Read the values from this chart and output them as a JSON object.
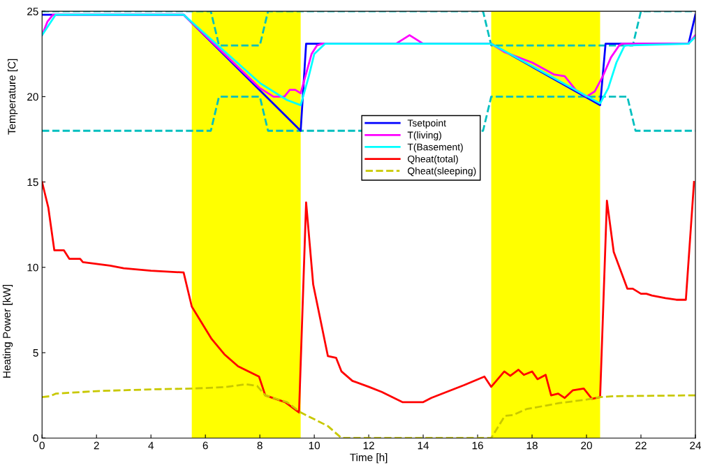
{
  "chart_data": {
    "type": "line",
    "xlabel": "Time [h]",
    "ylabel": "Heating Power [kW]",
    "annotations": [
      "Temperature [C]"
    ],
    "xlim": [
      0,
      24
    ],
    "ylim": [
      0,
      25
    ],
    "xticks": [
      0,
      2,
      4,
      6,
      8,
      10,
      12,
      14,
      16,
      18,
      20,
      22,
      24
    ],
    "yticks": [
      0,
      5,
      10,
      15,
      20,
      25
    ],
    "grid": false,
    "legend": "center",
    "marker": "none",
    "bands": [
      {
        "axis": "x",
        "from": 5.5,
        "to": 9.5,
        "color": "#ffff00"
      },
      {
        "axis": "x",
        "from": 16.5,
        "to": 20.5,
        "color": "#ffff00"
      }
    ],
    "series": [
      {
        "color": "#00bfbf",
        "line_style": "dashed",
        "x": [
          0,
          6.2,
          6.5,
          8,
          8.3,
          16.2,
          16.5,
          21.7,
          22,
          24
        ],
        "values": [
          25,
          25,
          23,
          23,
          25,
          25,
          23,
          23,
          25,
          25
        ]
      },
      {
        "color": "#00bfbf",
        "line_style": "dashed",
        "x": [
          0,
          6.2,
          6.5,
          8,
          8.3,
          16.2,
          16.5,
          21.5,
          21.8,
          24
        ],
        "values": [
          18,
          18,
          20,
          20,
          18,
          18,
          20,
          20,
          18,
          18
        ]
      },
      {
        "name": "Tsetpoint",
        "color": "#0000ff",
        "line_style": "solid",
        "x": [
          0,
          0.4,
          5.2,
          9.5,
          9.7,
          16.5,
          20.5,
          20.7,
          23.75,
          24
        ],
        "values": [
          24.8,
          24.8,
          24.8,
          18,
          23.1,
          23.1,
          19.5,
          23.1,
          23.1,
          24.8
        ]
      },
      {
        "name": "T(living)",
        "color": "#ff00ff",
        "line_style": "solid",
        "x": [
          0,
          0.2,
          0.4,
          5.2,
          8,
          8.5,
          8.9,
          9.1,
          9.3,
          9.5,
          9.9,
          10.1,
          10.3,
          13,
          13.5,
          14,
          16.5,
          17,
          18,
          18.8,
          19.2,
          19.6,
          20,
          20.3,
          20.6,
          20.9,
          21.2,
          21.3,
          23.75,
          24
        ],
        "values": [
          23.6,
          24.4,
          24.8,
          24.8,
          20.5,
          20,
          20,
          20.4,
          20.4,
          20.2,
          22.5,
          23,
          23.1,
          23.1,
          23.6,
          23.1,
          23.1,
          22.6,
          22,
          21.3,
          21.2,
          20.4,
          20,
          20.3,
          21.2,
          22.3,
          23,
          23.1,
          23.1,
          23.6
        ]
      },
      {
        "name": "T(Basement)",
        "color": "#00ffff",
        "line_style": "solid",
        "x": [
          0,
          0.5,
          5.2,
          8,
          9,
          9.5,
          9.8,
          10,
          10.4,
          16.5,
          20.5,
          20.8,
          21.1,
          21.4,
          23.75,
          24
        ],
        "values": [
          23.6,
          24.8,
          24.8,
          20.8,
          19.8,
          19.5,
          21.2,
          22.5,
          23.1,
          23.1,
          19.6,
          20.5,
          22,
          23,
          23.1,
          23.5
        ]
      },
      {
        "name": "Qheat(total)",
        "color": "#ff0000",
        "line_style": "solid",
        "x": [
          0,
          0.23,
          0.45,
          0.8,
          1,
          1.4,
          1.5,
          2,
          2.5,
          3,
          4,
          5.2,
          5.5,
          6.23,
          6.7,
          7.2,
          7.97,
          8.2,
          8.93,
          9.44,
          9.7,
          9.96,
          10.5,
          10.8,
          11,
          11.4,
          12,
          12.48,
          13.25,
          13.99,
          14.3,
          15.5,
          16.25,
          16.5,
          16.98,
          17.2,
          17.5,
          17.7,
          18,
          18.2,
          18.5,
          18.7,
          18.96,
          19.2,
          19.5,
          19.9,
          20.2,
          20.5,
          20.75,
          21,
          21.5,
          21.7,
          22,
          22.2,
          22.4,
          22.9,
          23.3,
          23.65,
          23.95
        ],
        "values": [
          15,
          13.5,
          11,
          11,
          10.5,
          10.5,
          10.3,
          10.2,
          10.1,
          9.95,
          9.8,
          9.7,
          7.7,
          5.8,
          4.9,
          4.2,
          3.6,
          2.5,
          2.1,
          1.5,
          13.8,
          9,
          4.8,
          4.7,
          3.9,
          3.35,
          3,
          2.7,
          2.1,
          2.1,
          2.35,
          3.1,
          3.6,
          3,
          3.9,
          3.65,
          4,
          3.7,
          3.9,
          3.45,
          3.7,
          2.5,
          2.6,
          2.35,
          2.8,
          2.9,
          2.3,
          2.4,
          13.9,
          10.9,
          8.75,
          8.75,
          8.45,
          8.45,
          8.35,
          8.2,
          8.1,
          8.1,
          15
        ]
      },
      {
        "name": "Qheat(sleeping)",
        "color": "#c8c800",
        "line_style": "dashed",
        "x": [
          0,
          0.3,
          0.5,
          1.5,
          2,
          4,
          5.5,
          6.3,
          6.8,
          7.5,
          7.9,
          8.2,
          9,
          9.5,
          10,
          10.5,
          11,
          16.5,
          17,
          17.3,
          17.8,
          18.5,
          19,
          20,
          20.5,
          21,
          23.8,
          24
        ],
        "values": [
          2.4,
          2.45,
          2.6,
          2.7,
          2.75,
          2.85,
          2.9,
          2.95,
          3,
          3.15,
          3.05,
          2.5,
          2.1,
          1.5,
          1.1,
          0.7,
          0,
          0,
          1.3,
          1.35,
          1.7,
          1.9,
          2.05,
          2.25,
          2.4,
          2.45,
          2.5,
          2.5
        ]
      }
    ]
  }
}
